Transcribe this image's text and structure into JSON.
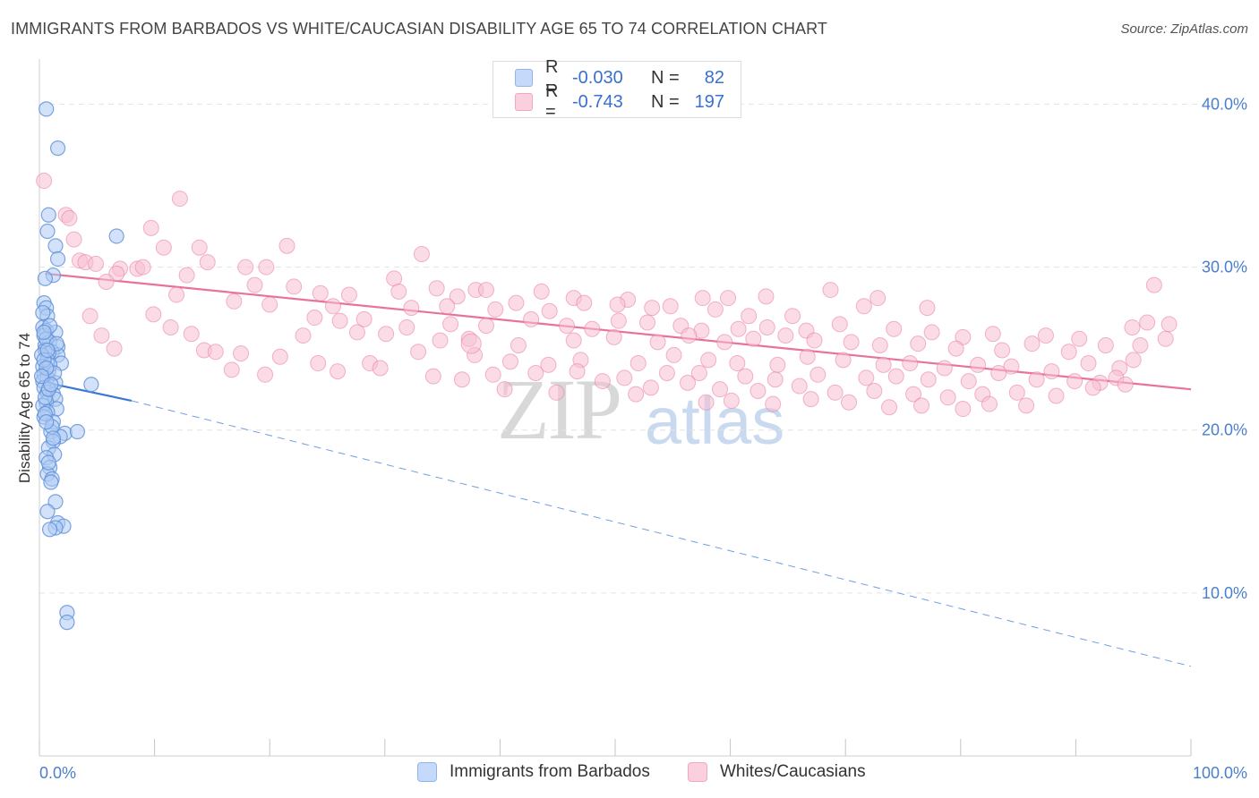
{
  "title": "IMMIGRANTS FROM BARBADOS VS WHITE/CAUCASIAN DISABILITY AGE 65 TO 74 CORRELATION CHART",
  "source": "Source: ZipAtlas.com",
  "watermark": {
    "zip": "ZIP",
    "atlas": "atlas"
  },
  "legend_top": {
    "rows": [
      {
        "r_label": "R =",
        "r_value": "-0.030",
        "n_label": "N =",
        "n_value": "82",
        "color": "#8fb5ef"
      },
      {
        "r_label": "R =",
        "r_value": "-0.743",
        "n_label": "N =",
        "n_value": "197",
        "color": "#f4a7c0"
      }
    ]
  },
  "legend_bottom": [
    {
      "label": "Immigrants from Barbados",
      "color": "#8fb5ef"
    },
    {
      "label": "Whites/Caucasians",
      "color": "#f4a7c0"
    }
  ],
  "chart_data": {
    "type": "scatter",
    "title": "IMMIGRANTS FROM BARBADOS VS WHITE/CAUCASIAN DISABILITY AGE 65 TO 74 CORRELATION CHART",
    "xlabel": "",
    "ylabel": "Disability Age 65 to 74",
    "xlim": [
      0,
      100
    ],
    "ylim": [
      0,
      42
    ],
    "x_tick_labels": [
      "0.0%",
      "100.0%"
    ],
    "y_ticks": [
      10,
      20,
      30,
      40
    ],
    "y_tick_labels": [
      "10.0%",
      "20.0%",
      "30.0%",
      "40.0%"
    ],
    "grid": true,
    "series": [
      {
        "name": "Immigrants from Barbados",
        "color": "#5b8fd9",
        "fill": "#aecbf3",
        "trend": {
          "x": [
            0,
            8
          ],
          "y": [
            23.0,
            21.8
          ],
          "dashed_to": [
            100,
            5.5
          ]
        },
        "points": [
          [
            0.6,
            39.7
          ],
          [
            1.6,
            37.3
          ],
          [
            0.8,
            33.2
          ],
          [
            0.7,
            32.2
          ],
          [
            6.7,
            31.9
          ],
          [
            1.4,
            31.3
          ],
          [
            1.6,
            30.5
          ],
          [
            1.2,
            29.5
          ],
          [
            0.5,
            29.3
          ],
          [
            0.4,
            27.8
          ],
          [
            0.6,
            27.5
          ],
          [
            0.7,
            27.0
          ],
          [
            0.3,
            26.3
          ],
          [
            0.6,
            26.1
          ],
          [
            1.4,
            26.0
          ],
          [
            0.4,
            25.8
          ],
          [
            0.9,
            25.4
          ],
          [
            0.5,
            25.2
          ],
          [
            1.6,
            25.1
          ],
          [
            0.5,
            24.9
          ],
          [
            1.1,
            24.8
          ],
          [
            1.6,
            24.6
          ],
          [
            0.8,
            24.7
          ],
          [
            0.2,
            24.6
          ],
          [
            0.7,
            24.3
          ],
          [
            1.9,
            24.1
          ],
          [
            0.3,
            23.9
          ],
          [
            0.8,
            23.6
          ],
          [
            0.4,
            23.4
          ],
          [
            0.7,
            23.2
          ],
          [
            0.3,
            23.0
          ],
          [
            1.4,
            22.9
          ],
          [
            4.5,
            22.8
          ],
          [
            0.4,
            22.6
          ],
          [
            0.7,
            22.3
          ],
          [
            1.2,
            22.2
          ],
          [
            1.4,
            21.9
          ],
          [
            0.6,
            21.7
          ],
          [
            0.3,
            21.5
          ],
          [
            1.5,
            21.3
          ],
          [
            0.7,
            21.1
          ],
          [
            0.4,
            20.8
          ],
          [
            1.2,
            20.5
          ],
          [
            1.0,
            19.9
          ],
          [
            2.2,
            19.8
          ],
          [
            3.3,
            19.9
          ],
          [
            1.8,
            19.6
          ],
          [
            1.2,
            19.3
          ],
          [
            0.8,
            18.9
          ],
          [
            1.3,
            18.5
          ],
          [
            0.6,
            18.3
          ],
          [
            0.9,
            17.7
          ],
          [
            0.7,
            17.3
          ],
          [
            1.1,
            17.0
          ],
          [
            1.0,
            16.8
          ],
          [
            1.4,
            15.6
          ],
          [
            0.7,
            15.0
          ],
          [
            1.6,
            14.3
          ],
          [
            2.1,
            14.1
          ],
          [
            1.4,
            14.0
          ],
          [
            0.9,
            13.9
          ],
          [
            2.4,
            8.8
          ],
          [
            2.4,
            8.2
          ],
          [
            0.5,
            22.0
          ],
          [
            0.9,
            24.0
          ],
          [
            1.3,
            23.5
          ],
          [
            0.6,
            25.6
          ],
          [
            0.4,
            24.3
          ],
          [
            0.8,
            22.5
          ],
          [
            1.1,
            20.2
          ],
          [
            0.3,
            27.2
          ],
          [
            0.9,
            26.4
          ],
          [
            0.6,
            23.8
          ],
          [
            1.5,
            25.3
          ],
          [
            0.5,
            21.0
          ],
          [
            0.2,
            23.3
          ],
          [
            0.7,
            24.9
          ],
          [
            1.2,
            19.5
          ],
          [
            0.4,
            26.0
          ],
          [
            1.0,
            22.8
          ],
          [
            0.6,
            20.5
          ],
          [
            0.8,
            18.0
          ]
        ]
      },
      {
        "name": "Whites/Caucasians",
        "color": "#e87aa0",
        "fill": "#f8bfd2",
        "trend": {
          "x": [
            0.5,
            100
          ],
          "y": [
            29.6,
            22.5
          ]
        },
        "points": [
          [
            0.4,
            35.3
          ],
          [
            12.2,
            34.2
          ],
          [
            2.3,
            33.2
          ],
          [
            2.6,
            33.0
          ],
          [
            9.7,
            32.4
          ],
          [
            3.0,
            31.7
          ],
          [
            10.8,
            31.2
          ],
          [
            13.9,
            31.2
          ],
          [
            21.5,
            31.3
          ],
          [
            33.2,
            30.8
          ],
          [
            3.5,
            30.4
          ],
          [
            4.0,
            30.3
          ],
          [
            4.9,
            30.2
          ],
          [
            14.6,
            30.3
          ],
          [
            8.5,
            29.9
          ],
          [
            7.0,
            29.9
          ],
          [
            9.0,
            30.0
          ],
          [
            17.9,
            30.0
          ],
          [
            19.7,
            30.0
          ],
          [
            6.7,
            29.6
          ],
          [
            12.8,
            29.5
          ],
          [
            5.8,
            29.1
          ],
          [
            30.8,
            29.3
          ],
          [
            18.7,
            28.9
          ],
          [
            22.1,
            28.8
          ],
          [
            37.9,
            28.6
          ],
          [
            34.5,
            28.7
          ],
          [
            96.8,
            28.9
          ],
          [
            11.9,
            28.3
          ],
          [
            24.4,
            28.4
          ],
          [
            26.9,
            28.3
          ],
          [
            31.2,
            28.5
          ],
          [
            36.3,
            28.2
          ],
          [
            38.8,
            28.6
          ],
          [
            43.6,
            28.5
          ],
          [
            46.4,
            28.1
          ],
          [
            51.1,
            28.0
          ],
          [
            57.6,
            28.1
          ],
          [
            59.8,
            28.1
          ],
          [
            63.1,
            28.2
          ],
          [
            68.7,
            28.6
          ],
          [
            72.8,
            28.1
          ],
          [
            16.9,
            27.9
          ],
          [
            20.0,
            27.7
          ],
          [
            25.5,
            27.6
          ],
          [
            32.3,
            27.5
          ],
          [
            35.4,
            27.6
          ],
          [
            39.6,
            27.4
          ],
          [
            41.4,
            27.8
          ],
          [
            44.3,
            27.3
          ],
          [
            47.3,
            27.8
          ],
          [
            50.2,
            27.7
          ],
          [
            53.2,
            27.5
          ],
          [
            54.8,
            27.6
          ],
          [
            58.7,
            27.4
          ],
          [
            61.6,
            27.0
          ],
          [
            65.4,
            27.0
          ],
          [
            71.6,
            27.6
          ],
          [
            77.1,
            27.5
          ],
          [
            4.4,
            27.0
          ],
          [
            9.9,
            27.1
          ],
          [
            23.9,
            26.9
          ],
          [
            26.1,
            26.7
          ],
          [
            28.2,
            26.8
          ],
          [
            31.9,
            26.3
          ],
          [
            35.7,
            26.5
          ],
          [
            38.8,
            26.4
          ],
          [
            42.7,
            26.8
          ],
          [
            45.8,
            26.4
          ],
          [
            48.0,
            26.2
          ],
          [
            50.3,
            26.7
          ],
          [
            52.8,
            26.6
          ],
          [
            55.7,
            26.4
          ],
          [
            57.5,
            26.1
          ],
          [
            60.7,
            26.2
          ],
          [
            63.2,
            26.3
          ],
          [
            66.6,
            26.1
          ],
          [
            69.5,
            26.5
          ],
          [
            74.2,
            26.2
          ],
          [
            77.5,
            26.0
          ],
          [
            80.2,
            25.7
          ],
          [
            82.8,
            25.9
          ],
          [
            87.4,
            25.8
          ],
          [
            90.3,
            25.6
          ],
          [
            94.9,
            26.3
          ],
          [
            96.2,
            26.6
          ],
          [
            98.1,
            26.5
          ],
          [
            5.4,
            25.8
          ],
          [
            11.4,
            26.3
          ],
          [
            13.2,
            25.9
          ],
          [
            22.9,
            25.8
          ],
          [
            27.6,
            26.0
          ],
          [
            30.1,
            25.9
          ],
          [
            34.8,
            25.5
          ],
          [
            37.3,
            25.6
          ],
          [
            41.6,
            25.2
          ],
          [
            46.4,
            25.5
          ],
          [
            49.9,
            25.7
          ],
          [
            53.7,
            25.4
          ],
          [
            56.4,
            25.8
          ],
          [
            59.5,
            25.4
          ],
          [
            62.0,
            25.6
          ],
          [
            64.8,
            25.8
          ],
          [
            67.3,
            25.5
          ],
          [
            70.5,
            25.4
          ],
          [
            73.0,
            25.2
          ],
          [
            76.3,
            25.3
          ],
          [
            79.6,
            25.0
          ],
          [
            83.6,
            24.9
          ],
          [
            86.2,
            25.3
          ],
          [
            89.4,
            24.8
          ],
          [
            92.6,
            25.2
          ],
          [
            95.6,
            25.2
          ],
          [
            97.8,
            25.6
          ],
          [
            14.3,
            24.9
          ],
          [
            15.3,
            24.8
          ],
          [
            6.5,
            25.0
          ],
          [
            17.5,
            24.7
          ],
          [
            20.9,
            24.5
          ],
          [
            24.2,
            24.1
          ],
          [
            28.7,
            24.1
          ],
          [
            32.9,
            24.8
          ],
          [
            37.8,
            24.6
          ],
          [
            40.9,
            24.2
          ],
          [
            44.2,
            24.0
          ],
          [
            47.0,
            24.3
          ],
          [
            52.0,
            24.1
          ],
          [
            55.1,
            24.6
          ],
          [
            58.1,
            24.3
          ],
          [
            60.6,
            24.1
          ],
          [
            64.1,
            24.0
          ],
          [
            66.7,
            24.5
          ],
          [
            69.8,
            24.3
          ],
          [
            73.3,
            24.0
          ],
          [
            75.6,
            24.1
          ],
          [
            78.6,
            23.8
          ],
          [
            81.5,
            24.0
          ],
          [
            84.4,
            23.9
          ],
          [
            87.9,
            23.6
          ],
          [
            91.1,
            24.1
          ],
          [
            93.8,
            23.8
          ],
          [
            95.0,
            24.3
          ],
          [
            16.7,
            23.7
          ],
          [
            25.9,
            23.6
          ],
          [
            29.6,
            23.8
          ],
          [
            34.2,
            23.3
          ],
          [
            39.4,
            23.4
          ],
          [
            43.1,
            23.5
          ],
          [
            46.7,
            23.6
          ],
          [
            50.8,
            23.2
          ],
          [
            54.5,
            23.5
          ],
          [
            57.3,
            23.5
          ],
          [
            61.3,
            23.3
          ],
          [
            63.9,
            23.1
          ],
          [
            67.6,
            23.4
          ],
          [
            71.8,
            23.2
          ],
          [
            74.4,
            23.3
          ],
          [
            77.2,
            23.1
          ],
          [
            80.7,
            23.0
          ],
          [
            83.3,
            23.5
          ],
          [
            86.6,
            23.1
          ],
          [
            89.9,
            23.0
          ],
          [
            92.1,
            22.9
          ],
          [
            93.5,
            23.2
          ],
          [
            19.6,
            23.4
          ],
          [
            36.7,
            23.1
          ],
          [
            48.9,
            23.0
          ],
          [
            53.1,
            22.6
          ],
          [
            56.3,
            22.9
          ],
          [
            59.1,
            22.5
          ],
          [
            62.4,
            22.4
          ],
          [
            66.0,
            22.7
          ],
          [
            69.1,
            22.3
          ],
          [
            72.5,
            22.4
          ],
          [
            75.9,
            22.2
          ],
          [
            78.9,
            22.0
          ],
          [
            81.9,
            22.2
          ],
          [
            84.9,
            22.3
          ],
          [
            88.3,
            22.1
          ],
          [
            91.5,
            22.6
          ],
          [
            94.3,
            22.8
          ],
          [
            40.4,
            22.5
          ],
          [
            44.9,
            22.3
          ],
          [
            51.8,
            22.2
          ],
          [
            57.9,
            21.7
          ],
          [
            60.1,
            21.8
          ],
          [
            63.7,
            21.6
          ],
          [
            67.0,
            21.9
          ],
          [
            70.3,
            21.7
          ],
          [
            73.8,
            21.4
          ],
          [
            76.6,
            21.5
          ],
          [
            80.2,
            21.3
          ],
          [
            82.5,
            21.6
          ],
          [
            85.7,
            21.5
          ],
          [
            37.5,
            25.3
          ]
        ]
      }
    ]
  }
}
